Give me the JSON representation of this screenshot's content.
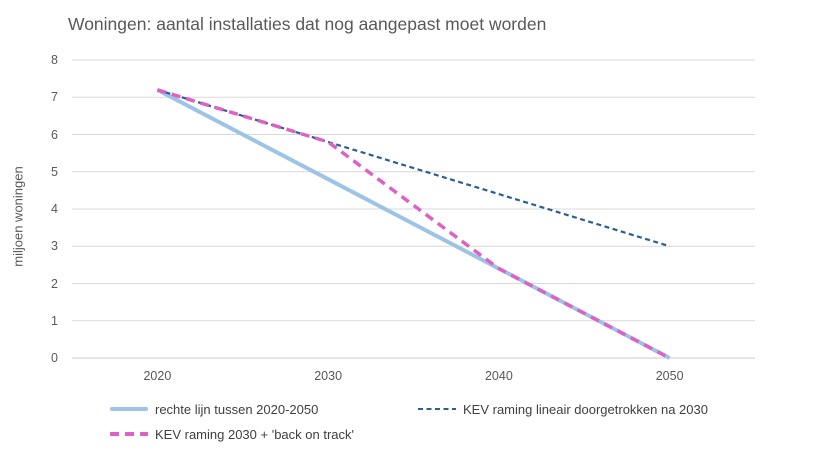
{
  "title": "Woningen: aantal installaties dat nog aangepast moet worden",
  "chart_data": {
    "type": "line",
    "title": "Woningen: aantal installaties dat nog aangepast moet worden",
    "categories": [
      "2020",
      "2030",
      "2040",
      "2050"
    ],
    "series": [
      {
        "name": "rechte lijn tussen 2020-2050",
        "values": [
          7.2,
          4.8,
          2.4,
          0
        ],
        "color": "#9DC3E6",
        "style": "solid",
        "stroke_width": 4
      },
      {
        "name": "KEV raming lineair doorgetrokken na 2030",
        "values": [
          7.2,
          5.8,
          4.4,
          3.0
        ],
        "color": "#2B5F94",
        "style": "dashed-small",
        "stroke_width": 2.2
      },
      {
        "name": "KEV raming 2030 + 'back on track'",
        "values": [
          7.2,
          5.8,
          2.4,
          0
        ],
        "color": "#DE61C5",
        "style": "dashed-large",
        "stroke_width": 3.5
      }
    ],
    "xlabel": "",
    "ylabel": "miljoen woningen",
    "ylim": [
      0,
      8
    ],
    "y_ticks": [
      0,
      1,
      2,
      3,
      4,
      5,
      6,
      7,
      8
    ],
    "grid": "horizontal",
    "legend_position": "bottom"
  },
  "colors": {
    "gridline": "#D9D9D9",
    "axis_line": "#CBCBCB",
    "title_text": "#595959",
    "tick_text": "#595959",
    "legend_text": "#404040",
    "background": "#FFFFFF"
  }
}
